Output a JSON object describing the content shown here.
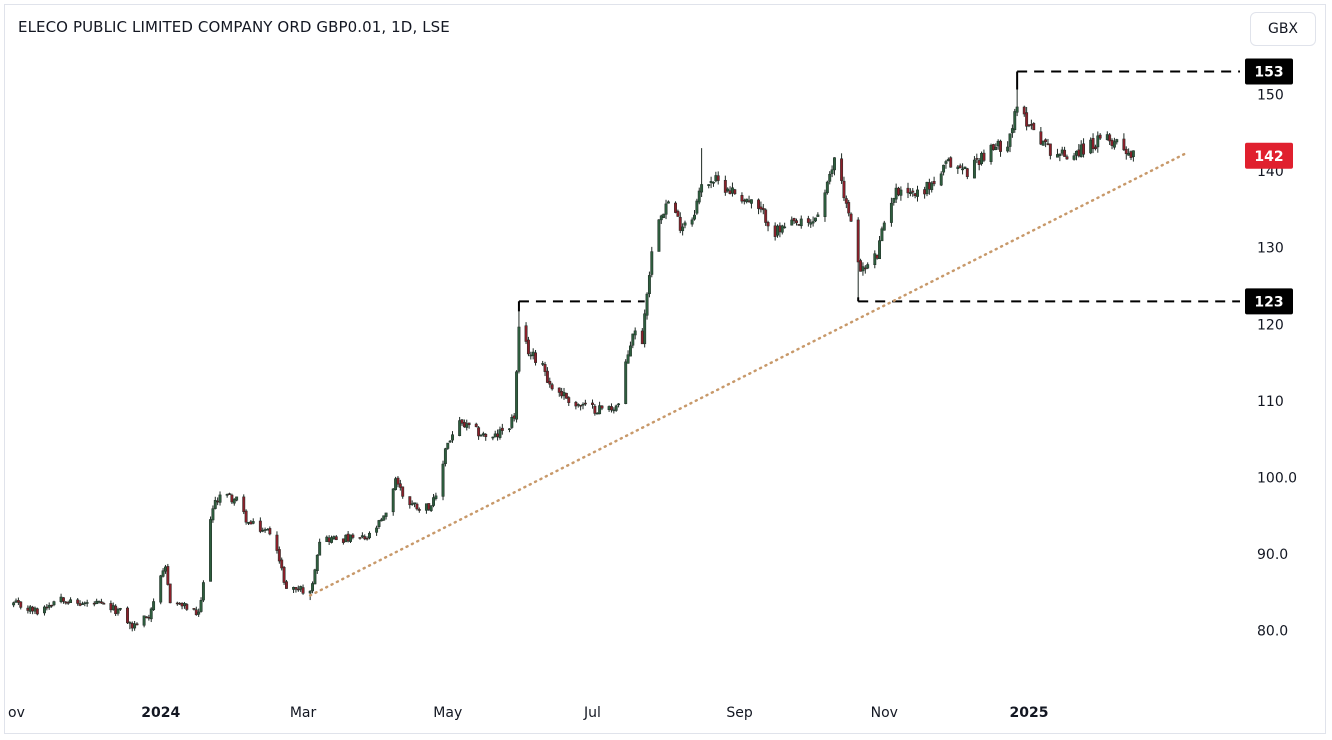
{
  "header": {
    "title": "ELECO PUBLIC LIMITED COMPANY ORD GBP0.01, 1D, LSE",
    "currency_button": "GBX"
  },
  "colors": {
    "up": "#2e5e3e",
    "down": "#8b1f2a",
    "resistance_line": "#000000",
    "trendline": "#c8996a",
    "price_label_bg": "#e0202e",
    "level_label_bg": "#000000"
  },
  "chart_data": {
    "type": "candlestick",
    "title": "ELECO PUBLIC LIMITED COMPANY ORD GBP0.01, 1D, LSE",
    "x_ticks": [
      {
        "label": "ov",
        "date": "2023-11-01",
        "bold": false
      },
      {
        "label": "2024",
        "date": "2024-01-01",
        "bold": true
      },
      {
        "label": "Mar",
        "date": "2024-03-01",
        "bold": false
      },
      {
        "label": "May",
        "date": "2024-05-01",
        "bold": false
      },
      {
        "label": "Jul",
        "date": "2024-07-01",
        "bold": false
      },
      {
        "label": "Sep",
        "date": "2024-09-01",
        "bold": false
      },
      {
        "label": "Nov",
        "date": "2024-11-01",
        "bold": false
      },
      {
        "label": "2025",
        "date": "2025-01-01",
        "bold": true
      }
    ],
    "y_ticks": [
      "80.0",
      "90.0",
      "100.0",
      "110",
      "120",
      "130",
      "140",
      "150"
    ],
    "y_range": [
      72,
      157.5
    ],
    "current_price": {
      "label": "142",
      "value": 142
    },
    "levels": [
      {
        "label": "153",
        "value": 153,
        "from": "2024-12-27"
      },
      {
        "label": "123",
        "value": 123,
        "from": "2024-10-21"
      },
      {
        "label": "",
        "value": 123,
        "from": "2024-05-31",
        "to": "2024-07-23"
      }
    ],
    "trendline": {
      "from": {
        "date": "2024-03-04",
        "value": 84.6
      },
      "to": {
        "date": "2025-03-08",
        "value": 142.3
      }
    },
    "path_points": [
      [
        "2023-10-31",
        83.5
      ],
      [
        "2023-11-10",
        82.5
      ],
      [
        "2023-11-20",
        84.5
      ],
      [
        "2023-11-25",
        83.5
      ],
      [
        "2023-12-05",
        83.5
      ],
      [
        "2023-12-15",
        82.5
      ],
      [
        "2023-12-20",
        80.5
      ],
      [
        "2023-12-27",
        82
      ],
      [
        "2023-12-31",
        86
      ],
      [
        "2024-01-03",
        88
      ],
      [
        "2024-01-05",
        84
      ],
      [
        "2024-01-12",
        83
      ],
      [
        "2024-01-17",
        82
      ],
      [
        "2024-01-19",
        86
      ],
      [
        "2024-01-22",
        95
      ],
      [
        "2024-01-26",
        98
      ],
      [
        "2024-02-02",
        97
      ],
      [
        "2024-02-07",
        94
      ],
      [
        "2024-02-14",
        93
      ],
      [
        "2024-02-18",
        93
      ],
      [
        "2024-02-20",
        89
      ],
      [
        "2024-02-23",
        85.5
      ],
      [
        "2024-02-29",
        85.5
      ],
      [
        "2024-03-04",
        84.8
      ],
      [
        "2024-03-08",
        92
      ],
      [
        "2024-03-15",
        92
      ],
      [
        "2024-03-28",
        92
      ],
      [
        "2024-04-05",
        95
      ],
      [
        "2024-04-09",
        100
      ],
      [
        "2024-04-13",
        97
      ],
      [
        "2024-04-20",
        96
      ],
      [
        "2024-04-24",
        96.5
      ],
      [
        "2024-04-27",
        97.5
      ],
      [
        "2024-04-30",
        104
      ],
      [
        "2024-05-06",
        107
      ],
      [
        "2024-05-13",
        106
      ],
      [
        "2024-05-20",
        105
      ],
      [
        "2024-05-27",
        107
      ],
      [
        "2024-05-29",
        108
      ],
      [
        "2024-05-31",
        119
      ],
      [
        "2024-06-05",
        116
      ],
      [
        "2024-06-10",
        115
      ],
      [
        "2024-06-13",
        112
      ],
      [
        "2024-06-18",
        111
      ],
      [
        "2024-06-24",
        109.5
      ],
      [
        "2024-07-01",
        109
      ],
      [
        "2024-07-08",
        109
      ],
      [
        "2024-07-12",
        109.5
      ],
      [
        "2024-07-14",
        113
      ],
      [
        "2024-07-18",
        119
      ],
      [
        "2024-07-22",
        118
      ],
      [
        "2024-07-24",
        124.5
      ],
      [
        "2024-07-28",
        134
      ],
      [
        "2024-08-02",
        136
      ],
      [
        "2024-08-07",
        133
      ],
      [
        "2024-08-12",
        134
      ],
      [
        "2024-08-16",
        138
      ],
      [
        "2024-08-20",
        139
      ],
      [
        "2024-08-26",
        138
      ],
      [
        "2024-09-05",
        136
      ],
      [
        "2024-09-12",
        134
      ],
      [
        "2024-09-16",
        132
      ],
      [
        "2024-09-24",
        133
      ],
      [
        "2024-10-01",
        133
      ],
      [
        "2024-10-05",
        135
      ],
      [
        "2024-10-09",
        139
      ],
      [
        "2024-10-12",
        143
      ],
      [
        "2024-10-15",
        137
      ],
      [
        "2024-10-18",
        133
      ],
      [
        "2024-10-20",
        129
      ],
      [
        "2024-10-23",
        127
      ],
      [
        "2024-10-29",
        129
      ],
      [
        "2024-11-03",
        136
      ],
      [
        "2024-11-08",
        138
      ],
      [
        "2024-11-14",
        137
      ],
      [
        "2024-11-22",
        138.5
      ],
      [
        "2024-11-28",
        141
      ],
      [
        "2024-12-06",
        140
      ],
      [
        "2024-12-12",
        142
      ],
      [
        "2024-12-18",
        143
      ],
      [
        "2024-12-23",
        144
      ],
      [
        "2024-12-27",
        148
      ],
      [
        "2025-01-02",
        146
      ],
      [
        "2025-01-09",
        143
      ],
      [
        "2025-01-16",
        142
      ],
      [
        "2025-01-24",
        143
      ],
      [
        "2025-02-01",
        144
      ],
      [
        "2025-02-07",
        144
      ],
      [
        "2025-02-14",
        142
      ]
    ],
    "price_extremes": [
      {
        "date": "2024-10-21",
        "value": 123
      },
      {
        "date": "2024-12-27",
        "value": 153
      },
      {
        "date": "2024-05-31",
        "value": 123
      },
      {
        "date": "2024-03-04",
        "value": 84
      },
      {
        "date": "2023-12-19",
        "value": 80.2
      },
      {
        "date": "2024-08-16",
        "value": 143
      }
    ],
    "first_candle_date": "2023-10-31",
    "last_candle_date": "2025-02-14",
    "legend": "none",
    "grid": false
  }
}
